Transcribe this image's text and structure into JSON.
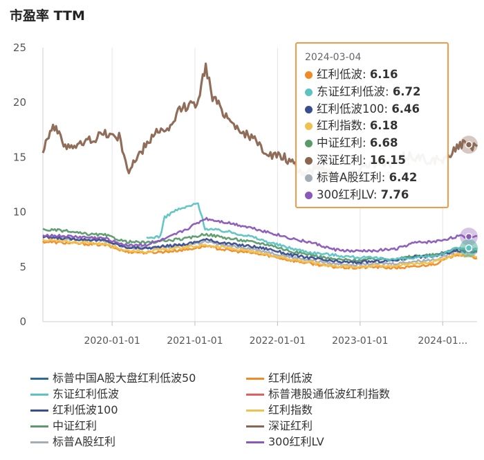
{
  "title": "市盈率 TTM",
  "chart_data": {
    "type": "line",
    "ylim": [
      0,
      25
    ],
    "yticks": [
      "0",
      "5",
      "10",
      "15",
      "20",
      "25"
    ],
    "x_range": [
      "2019-03-01",
      "2024-06-01"
    ],
    "xticks": [
      {
        "date": "2020-01-01",
        "label": "2020-01-01"
      },
      {
        "date": "2021-01-01",
        "label": "2021-01-01"
      },
      {
        "date": "2022-01-01",
        "label": "2022-01-01"
      },
      {
        "date": "2023-01-01",
        "label": "2023-01-01"
      },
      {
        "date": "2024-01-01",
        "label": "2024-01..."
      }
    ],
    "grid": "vertical",
    "legend_position": "bottom",
    "series": [
      {
        "name": "标普中国A股大盘红利低波50",
        "color": "#2e6a96",
        "values": [],
        "dates": []
      },
      {
        "name": "红利低波",
        "color": "#f08a24",
        "dates": [
          "2019-03-01",
          "2019-06-01",
          "2019-09-01",
          "2019-12-01",
          "2020-03-01",
          "2020-06-01",
          "2020-09-01",
          "2020-12-01",
          "2021-02-15",
          "2021-06-01",
          "2021-09-01",
          "2021-12-01",
          "2022-03-01",
          "2022-06-01",
          "2022-09-01",
          "2022-12-01",
          "2023-03-01",
          "2023-06-01",
          "2023-09-01",
          "2023-12-01",
          "2024-03-04",
          "2024-06-01"
        ],
        "values": [
          7.3,
          7.2,
          7.1,
          7.0,
          6.4,
          6.3,
          6.4,
          6.6,
          6.9,
          6.5,
          6.3,
          6.0,
          5.6,
          5.3,
          5.0,
          4.9,
          5.0,
          4.9,
          5.0,
          5.3,
          6.16,
          5.8
        ]
      },
      {
        "name": "东证红利低波",
        "color": "#5cc3c2",
        "dates": [
          "2020-06-01",
          "2020-08-01",
          "2020-08-20",
          "2020-10-01",
          "2020-12-01",
          "2021-01-15",
          "2021-02-15",
          "2021-06-01",
          "2021-09-01",
          "2021-12-01",
          "2022-03-01",
          "2022-06-01",
          "2022-09-01",
          "2022-12-01",
          "2023-03-01",
          "2023-06-01",
          "2023-09-01",
          "2023-12-01",
          "2024-03-04",
          "2024-06-01"
        ],
        "values": [
          7.6,
          7.8,
          9.5,
          10.1,
          10.5,
          10.8,
          8.5,
          8.2,
          7.8,
          7.2,
          6.7,
          6.3,
          6.1,
          5.9,
          5.8,
          5.7,
          5.8,
          6.0,
          6.72,
          6.6
        ]
      },
      {
        "name": "标普港股通低波红利指数",
        "color": "#e0605e",
        "values": [],
        "dates": []
      },
      {
        "name": "红利低波100",
        "color": "#3a4d8f",
        "dates": [
          "2019-03-01",
          "2019-06-01",
          "2019-09-01",
          "2019-12-01",
          "2020-03-01",
          "2020-06-01",
          "2020-09-01",
          "2020-12-01",
          "2021-02-15",
          "2021-06-01",
          "2021-09-01",
          "2021-12-01",
          "2022-03-01",
          "2022-06-01",
          "2022-09-01",
          "2022-12-01",
          "2023-03-01",
          "2023-06-01",
          "2023-09-01",
          "2023-12-01",
          "2024-03-04",
          "2024-06-01"
        ],
        "values": [
          7.7,
          7.6,
          7.5,
          7.4,
          6.8,
          6.7,
          6.9,
          7.1,
          7.5,
          7.1,
          6.9,
          6.6,
          6.1,
          5.8,
          5.5,
          5.4,
          5.5,
          5.6,
          5.9,
          6.0,
          6.46,
          6.4
        ]
      },
      {
        "name": "红利指数",
        "color": "#efc14e",
        "dates": [
          "2019-03-01",
          "2019-06-01",
          "2019-09-01",
          "2019-12-01",
          "2020-03-01",
          "2020-06-01",
          "2020-09-01",
          "2020-12-01",
          "2021-02-15",
          "2021-06-01",
          "2021-09-01",
          "2021-12-01",
          "2022-03-01",
          "2022-06-01",
          "2022-09-01",
          "2022-12-01",
          "2023-03-01",
          "2023-06-01",
          "2023-09-01",
          "2023-12-01",
          "2024-03-04",
          "2024-06-01"
        ],
        "values": [
          7.5,
          7.3,
          7.2,
          7.1,
          6.5,
          6.4,
          6.6,
          6.8,
          7.0,
          6.7,
          6.4,
          6.1,
          5.7,
          5.4,
          5.1,
          5.0,
          5.1,
          5.1,
          5.3,
          5.5,
          6.18,
          5.9
        ]
      },
      {
        "name": "中证红利",
        "color": "#5a9a6a",
        "dates": [
          "2019-03-01",
          "2019-06-01",
          "2019-09-01",
          "2019-12-01",
          "2020-03-01",
          "2020-06-01",
          "2020-09-01",
          "2020-12-01",
          "2021-02-15",
          "2021-06-01",
          "2021-09-01",
          "2021-12-01",
          "2022-03-01",
          "2022-06-01",
          "2022-09-01",
          "2022-12-01",
          "2023-03-01",
          "2023-06-01",
          "2023-09-01",
          "2023-12-01",
          "2024-03-04",
          "2024-06-01"
        ],
        "values": [
          8.4,
          8.3,
          8.0,
          7.9,
          7.3,
          7.2,
          7.4,
          7.6,
          8.0,
          7.6,
          7.3,
          7.0,
          6.4,
          6.1,
          5.7,
          5.6,
          5.7,
          5.7,
          6.0,
          6.1,
          6.68,
          6.5
        ]
      },
      {
        "name": "深证红利",
        "color": "#8a6550",
        "dates": [
          "2019-03-01",
          "2019-04-15",
          "2019-06-01",
          "2019-08-01",
          "2019-09-15",
          "2019-12-01",
          "2020-02-01",
          "2020-03-15",
          "2020-05-01",
          "2020-07-15",
          "2020-09-01",
          "2020-11-01",
          "2021-01-10",
          "2021-02-18",
          "2021-03-20",
          "2021-06-01",
          "2021-07-20",
          "2021-09-15",
          "2021-12-01",
          "2022-02-01",
          "2022-04-25",
          "2022-07-01",
          "2022-10-31",
          "2023-02-01",
          "2023-05-01",
          "2023-08-01",
          "2023-10-31",
          "2024-01-15",
          "2024-03-04",
          "2024-06-01"
        ],
        "values": [
          15.8,
          18.0,
          16.2,
          16.0,
          16.5,
          17.2,
          16.8,
          13.8,
          15.2,
          17.5,
          17.2,
          19.5,
          20.0,
          23.3,
          20.5,
          18.5,
          17.5,
          16.6,
          15.2,
          15.0,
          13.5,
          14.2,
          13.0,
          14.5,
          14.3,
          15.2,
          14.8,
          14.7,
          16.15,
          16.0
        ]
      },
      {
        "name": "标普A股红利",
        "color": "#a3adb8",
        "dates": [
          "2019-03-01",
          "2019-06-01",
          "2019-09-01",
          "2019-12-01",
          "2020-03-01",
          "2020-06-01",
          "2020-09-01",
          "2020-12-01",
          "2021-02-15",
          "2021-06-01",
          "2021-09-01",
          "2021-12-01",
          "2022-03-01",
          "2022-06-01",
          "2022-09-01",
          "2022-12-01",
          "2023-03-01",
          "2023-06-01",
          "2023-09-01",
          "2023-12-01",
          "2024-03-04",
          "2024-06-01"
        ],
        "values": [
          7.8,
          7.6,
          7.5,
          7.4,
          6.8,
          6.7,
          6.8,
          7.0,
          7.3,
          6.9,
          6.7,
          6.3,
          5.9,
          5.6,
          5.3,
          5.2,
          5.3,
          5.3,
          5.5,
          5.7,
          6.42,
          6.3
        ]
      },
      {
        "name": "300红利LV",
        "color": "#8a58b8",
        "dates": [
          "2019-03-01",
          "2019-06-01",
          "2019-09-01",
          "2019-12-01",
          "2020-03-01",
          "2020-06-01",
          "2020-09-01",
          "2020-12-01",
          "2021-02-15",
          "2021-06-01",
          "2021-09-01",
          "2021-12-01",
          "2022-03-01",
          "2022-06-01",
          "2022-09-01",
          "2022-12-01",
          "2023-03-01",
          "2023-06-01",
          "2023-09-01",
          "2023-12-01",
          "2024-03-04",
          "2024-06-01"
        ],
        "values": [
          7.9,
          7.8,
          7.7,
          7.6,
          7.0,
          7.0,
          7.6,
          8.5,
          9.4,
          9.0,
          8.6,
          8.1,
          7.6,
          7.2,
          6.6,
          6.4,
          6.5,
          6.6,
          7.2,
          7.3,
          7.76,
          7.8
        ]
      }
    ],
    "tooltip": {
      "date": "2024-03-04",
      "rows": [
        {
          "name": "红利低波",
          "value": "6.16",
          "color": "#f08a24"
        },
        {
          "name": "东证红利低波",
          "value": "6.72",
          "color": "#5cc3c2"
        },
        {
          "name": "红利低波100",
          "value": "6.46",
          "color": "#3a4d8f"
        },
        {
          "name": "红利指数",
          "value": "6.18",
          "color": "#efc14e"
        },
        {
          "name": "中证红利",
          "value": "6.68",
          "color": "#5a9a6a"
        },
        {
          "name": "深证红利",
          "value": "16.15",
          "color": "#8a6550"
        },
        {
          "name": "标普A股红利",
          "value": "6.42",
          "color": "#a3adb8"
        },
        {
          "name": "300红利LV",
          "value": "7.76",
          "color": "#8a58b8"
        }
      ]
    }
  }
}
